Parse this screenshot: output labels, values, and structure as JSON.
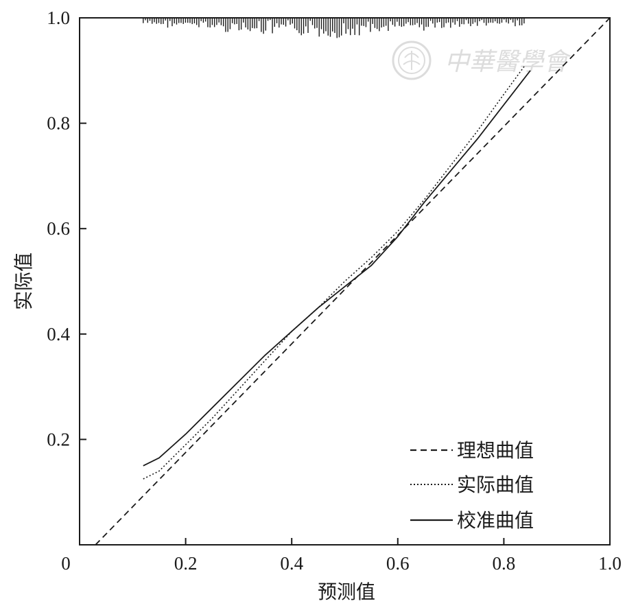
{
  "chart_data": {
    "type": "line",
    "xlabel": "预测值",
    "ylabel": "实际值",
    "xlim": [
      0,
      1.0
    ],
    "ylim": [
      0,
      1.0
    ],
    "x_ticks": [
      {
        "value": 0,
        "label": "0"
      },
      {
        "value": 0.2,
        "label": "0.2"
      },
      {
        "value": 0.4,
        "label": "0.4"
      },
      {
        "value": 0.6,
        "label": "0.6"
      },
      {
        "value": 0.8,
        "label": "0.8"
      },
      {
        "value": 1.0,
        "label": "1.0"
      }
    ],
    "y_ticks": [
      {
        "value": 0.2,
        "label": "0.2"
      },
      {
        "value": 0.4,
        "label": "0.4"
      },
      {
        "value": 0.6,
        "label": "0.6"
      },
      {
        "value": 0.8,
        "label": "0.8"
      },
      {
        "value": 1.0,
        "label": "1.0"
      }
    ],
    "grid": false,
    "legend_position": "bottom-right",
    "series": [
      {
        "name": "理想曲值",
        "style": "dashed",
        "x": [
          0.03,
          1.0
        ],
        "y": [
          0.0,
          1.0
        ]
      },
      {
        "name": "实际曲值",
        "style": "dotted",
        "x": [
          0.12,
          0.15,
          0.2,
          0.25,
          0.3,
          0.35,
          0.4,
          0.45,
          0.5,
          0.55,
          0.6,
          0.65,
          0.7,
          0.75,
          0.8,
          0.84
        ],
        "y": [
          0.125,
          0.14,
          0.19,
          0.24,
          0.295,
          0.35,
          0.405,
          0.45,
          0.5,
          0.545,
          0.595,
          0.655,
          0.72,
          0.785,
          0.855,
          0.91
        ]
      },
      {
        "name": "校准曲值",
        "style": "solid",
        "x": [
          0.12,
          0.15,
          0.2,
          0.25,
          0.3,
          0.35,
          0.4,
          0.45,
          0.5,
          0.55,
          0.6,
          0.65,
          0.7,
          0.75,
          0.8,
          0.85
        ],
        "y": [
          0.15,
          0.165,
          0.21,
          0.26,
          0.31,
          0.36,
          0.405,
          0.45,
          0.49,
          0.53,
          0.585,
          0.65,
          0.71,
          0.77,
          0.835,
          0.9
        ]
      }
    ],
    "rug_colors": {
      "line": "#1a1a1a",
      "axis": "#1a1a1a",
      "watermark": "#dcdcdc"
    }
  },
  "watermark": {
    "text": "中華醫學會",
    "icon": "society-seal-icon"
  }
}
